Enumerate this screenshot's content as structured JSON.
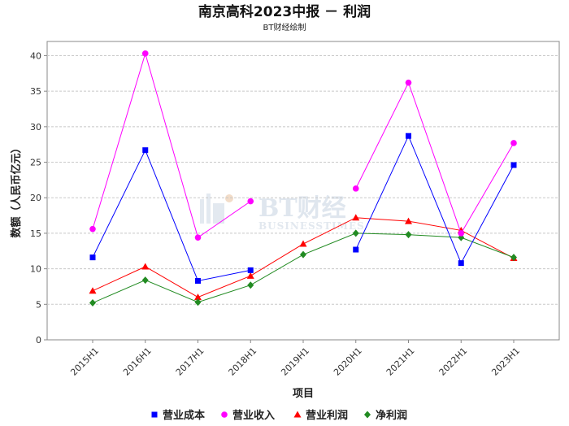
{
  "chart_data": {
    "type": "line",
    "title": "南京高科2023中报 － 利润",
    "subtitle": "BT财经绘制",
    "xlabel": "项目",
    "ylabel": "数额（人民币亿元）",
    "ylim": [
      0,
      42
    ],
    "yticks": [
      0,
      5,
      10,
      15,
      20,
      25,
      30,
      35,
      40
    ],
    "grid": true,
    "legend_position": "bottom",
    "categories": [
      "2015H1",
      "2016H1",
      "2017H1",
      "2018H1",
      "2019H1",
      "2020H1",
      "2021H1",
      "2022H1",
      "2023H1"
    ],
    "series": [
      {
        "name": "营业成本",
        "color": "#0000ff",
        "marker": "square",
        "values": [
          11.6,
          26.7,
          8.3,
          9.8,
          null,
          12.7,
          28.7,
          10.8,
          24.6
        ]
      },
      {
        "name": "营业收入",
        "color": "#ff00ff",
        "marker": "circle",
        "values": [
          15.6,
          40.3,
          14.4,
          19.5,
          null,
          21.3,
          36.2,
          15.0,
          27.7
        ]
      },
      {
        "name": "营业利润",
        "color": "#ff0000",
        "marker": "triangle",
        "values": [
          6.9,
          10.3,
          6.0,
          9.0,
          13.5,
          17.2,
          16.7,
          15.4,
          11.5
        ]
      },
      {
        "name": "净利润",
        "color": "#228b22",
        "marker": "diamond",
        "values": [
          5.2,
          8.4,
          5.3,
          7.7,
          12.0,
          15.0,
          14.8,
          14.4,
          11.6
        ]
      }
    ],
    "watermark": {
      "main": "BT财经",
      "sub": "BUSINESSTIMES"
    }
  }
}
